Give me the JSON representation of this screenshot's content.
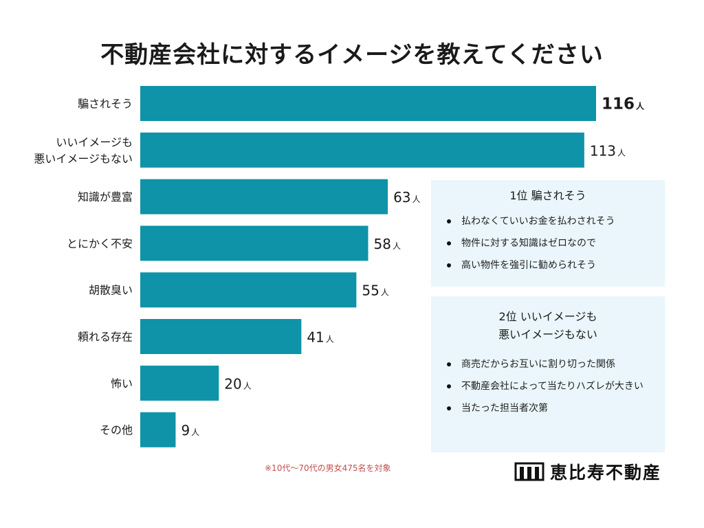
{
  "chart_data": {
    "type": "bar",
    "orientation": "horizontal",
    "title": "不動産会社に対するイメージを教えてください",
    "categories": [
      [
        "騙されそう"
      ],
      [
        "いいイメージも",
        "悪いイメージもない"
      ],
      [
        "知識が豊富"
      ],
      [
        "とにかく不安"
      ],
      [
        "胡散臭い"
      ],
      [
        "頼れる存在"
      ],
      [
        "怖い"
      ],
      [
        "その他"
      ]
    ],
    "values": [
      116,
      113,
      63,
      58,
      55,
      41,
      20,
      9
    ],
    "unit": "人",
    "xlim": [
      0,
      116
    ],
    "bar_color": "#0e93a8",
    "grid": false
  },
  "panels": {
    "first": {
      "heading": "1位 騙されそう",
      "items": [
        "払わなくていいお金を払わされそう",
        "物件に対する知識はゼロなので",
        "高い物件を強引に勧められそう"
      ]
    },
    "second": {
      "heading_line1": "2位 いいイメージも",
      "heading_line2": "悪いイメージもない",
      "items": [
        "商売だからお互いに割り切った関係",
        "不動産会社によって当たりハズレが大きい",
        "当たった担当者次第"
      ]
    },
    "panel_bg": "#eaf6fb"
  },
  "footnote": "※10代〜70代の男女475名を対象",
  "logo": {
    "text": "恵比寿不動産",
    "icon": "building-logo-icon"
  }
}
